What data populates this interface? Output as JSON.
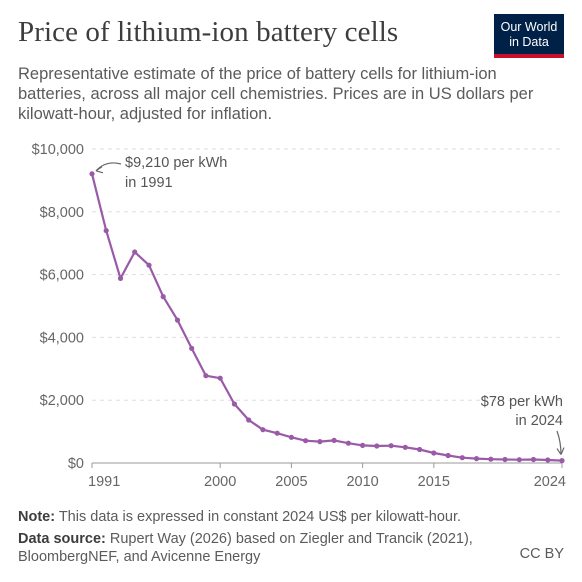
{
  "header": {
    "title": "Price of lithium-ion battery cells",
    "logo_line1": "Our World",
    "logo_line2": "in Data",
    "subtitle": "Representative estimate of the price of battery cells for lithium-ion batteries, across all major cell chemistries. Prices are in US dollars per kilowatt-hour, adjusted for inflation."
  },
  "chart_data": {
    "type": "line",
    "title": "Price of lithium-ion battery cells",
    "xlabel": "",
    "ylabel": "",
    "xlim": [
      1991,
      2024
    ],
    "ylim": [
      0,
      10000
    ],
    "x_ticks": [
      "1991",
      "2000",
      "2005",
      "2010",
      "2015",
      "2024"
    ],
    "x_tick_values": [
      1991,
      2000,
      2005,
      2010,
      2015,
      2024
    ],
    "y_ticks": [
      "$0",
      "$2,000",
      "$4,000",
      "$6,000",
      "$8,000",
      "$10,000"
    ],
    "y_tick_values": [
      0,
      2000,
      4000,
      6000,
      8000,
      10000
    ],
    "grid": true,
    "line_color": "#9a5aa8",
    "series": [
      {
        "x": [
          1991,
          1992,
          1993,
          1994,
          1995,
          1996,
          1997,
          1998,
          1999,
          2000,
          2001,
          2002,
          2003,
          2004,
          2005,
          2006,
          2007,
          2008,
          2009,
          2010,
          2011,
          2012,
          2013,
          2014,
          2015,
          2016,
          2017,
          2018,
          2019,
          2020,
          2021,
          2022,
          2023,
          2024
        ],
        "values": [
          9210,
          7400,
          5880,
          6720,
          6300,
          5300,
          4550,
          3650,
          2780,
          2700,
          1880,
          1370,
          1060,
          950,
          820,
          710,
          680,
          720,
          630,
          560,
          540,
          550,
          500,
          430,
          320,
          240,
          170,
          140,
          120,
          110,
          105,
          110,
          95,
          78
        ]
      }
    ],
    "annotations": [
      {
        "text_line1": "$9,210 per kWh",
        "text_line2": "in 1991",
        "x": 1991,
        "y": 9210
      },
      {
        "text_line1": "$78 per kWh",
        "text_line2": "in 2024",
        "x": 2024,
        "y": 78
      }
    ]
  },
  "footer": {
    "note_label": "Note:",
    "note_text": " This data is expressed in constant 2024 US$ per kilowatt-hour.",
    "source_label": "Data source:",
    "source_text": " Rupert Way (2026) based on Ziegler and Trancik (2021), BloombergNEF, and Avicenne Energy",
    "license": "CC BY"
  }
}
